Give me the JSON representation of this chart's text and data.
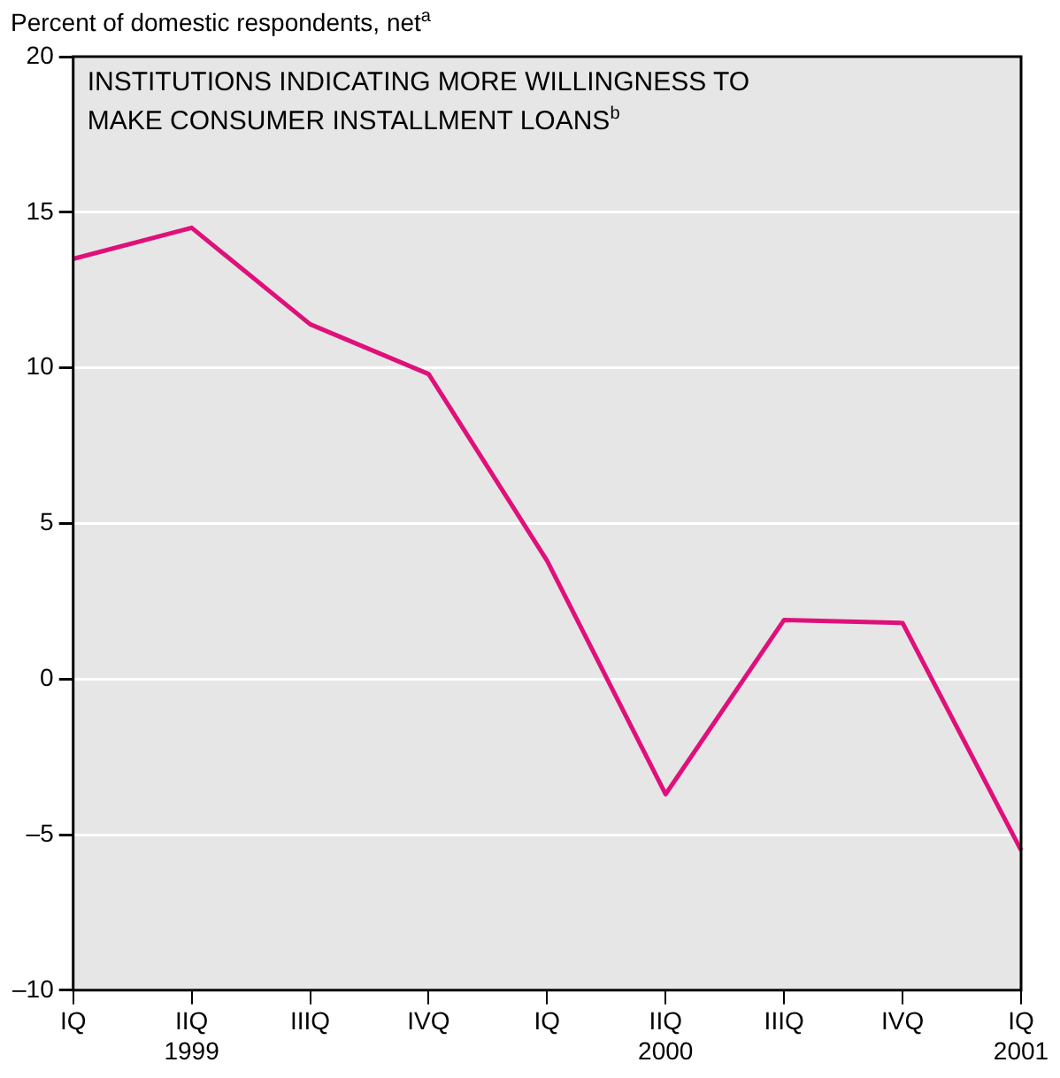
{
  "chart_data": {
    "type": "line",
    "title": "INSTITUTIONS INDICATING MORE WILLINGNESS TO MAKE CONSUMER INSTALLMENT LOANS$^{b}$",
    "ylabel": "Percent of domestic respondents, net$^{a}$",
    "categories": [
      "IQ",
      "IIQ\n1999",
      "IIIQ",
      "IVQ",
      "IQ",
      "IIQ\n2000",
      "IIIQ",
      "IVQ",
      "IQ\n2001"
    ],
    "series": [
      {
        "color": "#e0107a",
        "values": [
          13.5,
          14.5,
          11.4,
          9.8,
          3.8,
          -3.7,
          1.9,
          1.8,
          -5.5
        ]
      }
    ],
    "ylim": [
      -10,
      20
    ],
    "yticks": [
      {
        "value": -10,
        "label": "–10"
      },
      {
        "value": -5,
        "label": "–5"
      },
      0,
      5,
      10,
      15,
      20
    ],
    "grid": "y",
    "legend": false,
    "marker": "none",
    "line_style": "solid"
  }
}
